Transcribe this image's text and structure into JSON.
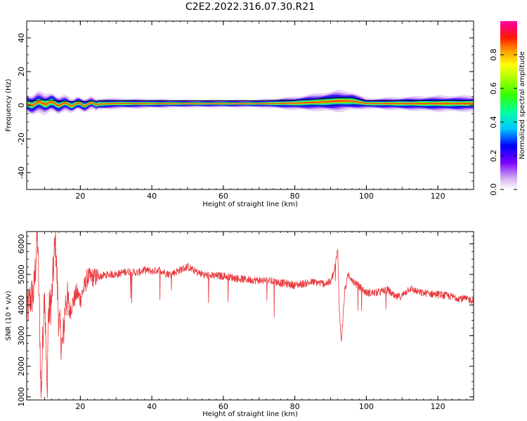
{
  "title": "C2E2.2022.316.07.30.R21",
  "chart_data": [
    {
      "type": "heatmap",
      "xlabel": "Height of straight line (km)",
      "ylabel": "Frequency (Hz)",
      "xlim": [
        5,
        130
      ],
      "ylim": [
        -50,
        50
      ],
      "x_ticks": [
        20,
        40,
        60,
        80,
        100,
        120
      ],
      "y_ticks": [
        -40,
        -20,
        0,
        20,
        40
      ],
      "colorbar": {
        "label": "Normalized spectral amplitude",
        "range": [
          0,
          1
        ],
        "ticks": [
          "0.0",
          "0.2",
          "0.4",
          "0.6",
          "0.8"
        ],
        "colormap": "gist_ncar-like (white, violet, blue, cyan, green, yellow, orange, red, magenta)"
      },
      "band": {
        "description": "Narrow high-amplitude spectral line near 0 to 2 Hz, widening where SNR is noisy",
        "profile": [
          {
            "x": 5,
            "center": 0.5,
            "halfwidth": 3.5
          },
          {
            "x": 10,
            "center": 1.5,
            "halfwidth": 4.0
          },
          {
            "x": 15,
            "center": 0.5,
            "halfwidth": 3.0
          },
          {
            "x": 20,
            "center": 0.5,
            "halfwidth": 2.5
          },
          {
            "x": 30,
            "center": 1.0,
            "halfwidth": 2.0
          },
          {
            "x": 50,
            "center": 1.0,
            "halfwidth": 1.5
          },
          {
            "x": 70,
            "center": 1.0,
            "halfwidth": 1.5
          },
          {
            "x": 80,
            "center": 1.2,
            "halfwidth": 2.5
          },
          {
            "x": 88,
            "center": 2.0,
            "halfwidth": 3.5
          },
          {
            "x": 92,
            "center": 2.5,
            "halfwidth": 4.0
          },
          {
            "x": 96,
            "center": 2.5,
            "halfwidth": 3.5
          },
          {
            "x": 100,
            "center": 1.0,
            "halfwidth": 2.0
          },
          {
            "x": 110,
            "center": 1.0,
            "halfwidth": 2.5
          },
          {
            "x": 120,
            "center": 1.0,
            "halfwidth": 3.0
          },
          {
            "x": 130,
            "center": 1.0,
            "halfwidth": 3.0
          }
        ]
      }
    },
    {
      "type": "line",
      "xlabel": "Height of straight line (km)",
      "ylabel": "SNR (10 * v/v)",
      "xlim": [
        5,
        130
      ],
      "ylim": [
        900,
        6400
      ],
      "x_ticks": [
        20,
        40,
        60,
        80,
        100,
        120
      ],
      "y_ticks": [
        1000,
        2000,
        3000,
        4000,
        5000,
        6000
      ],
      "series": [
        {
          "color": "#e8363a",
          "x": [
            5,
            6,
            7,
            8,
            8.7,
            9,
            10,
            10.7,
            11,
            12,
            13,
            14,
            15,
            16,
            17,
            18,
            19,
            20,
            22,
            24,
            26,
            28,
            30,
            33,
            36,
            38,
            40,
            42,
            45,
            48,
            50,
            53,
            56,
            60,
            65,
            70,
            72,
            75,
            80,
            85,
            88,
            90,
            91,
            92,
            92.5,
            93,
            94,
            95,
            97,
            100,
            103,
            106,
            108,
            110,
            112,
            115,
            120,
            125,
            130
          ],
          "values": [
            3700,
            4200,
            4400,
            6350,
            3000,
            1000,
            4700,
            900,
            3600,
            4200,
            6200,
            3400,
            2600,
            4300,
            3800,
            4100,
            4400,
            4200,
            4900,
            4900,
            4950,
            5000,
            5000,
            5100,
            5050,
            5150,
            5100,
            5150,
            5000,
            5150,
            5250,
            5050,
            4950,
            4950,
            4850,
            4800,
            4800,
            4750,
            4650,
            4750,
            4700,
            4750,
            5100,
            5800,
            3700,
            2800,
            4500,
            5000,
            4700,
            4400,
            4400,
            4500,
            4250,
            4300,
            4550,
            4400,
            4350,
            4250,
            4150
          ]
        }
      ]
    }
  ]
}
